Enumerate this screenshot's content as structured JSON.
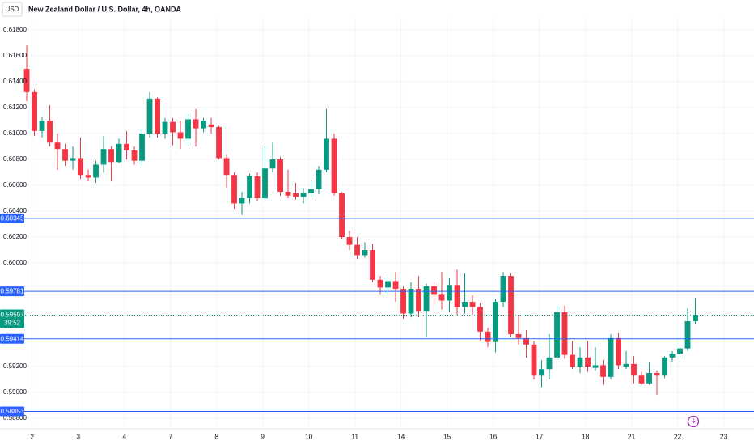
{
  "chart_data": {
    "type": "candlestick",
    "title": "New Zealand Dollar / U.S. Dollar, 4h, OANDA",
    "currency": "USD",
    "up_color": "#089981",
    "down_color": "#f23645",
    "line_color": "#2962ff",
    "grid": true,
    "xlim": [
      -0.53,
      94.63
    ],
    "ylim": [
      0.58719,
      0.61894
    ],
    "xticks": [
      {
        "value": 0.7,
        "label": "2"
      },
      {
        "value": 6.7,
        "label": "3"
      },
      {
        "value": 12.7,
        "label": "4"
      },
      {
        "value": 18.7,
        "label": "7"
      },
      {
        "value": 24.7,
        "label": "8"
      },
      {
        "value": 30.7,
        "label": "9"
      },
      {
        "value": 36.7,
        "label": "10"
      },
      {
        "value": 42.7,
        "label": "11"
      },
      {
        "value": 48.7,
        "label": "14"
      },
      {
        "value": 54.7,
        "label": "15"
      },
      {
        "value": 60.7,
        "label": "16"
      },
      {
        "value": 66.7,
        "label": "17"
      },
      {
        "value": 72.7,
        "label": "18"
      },
      {
        "value": 78.7,
        "label": "21"
      },
      {
        "value": 84.7,
        "label": "22"
      },
      {
        "value": 90.7,
        "label": "23"
      }
    ],
    "yticks": [
      {
        "value": 0.618,
        "label": "0.61800"
      },
      {
        "value": 0.616,
        "label": "0.61600"
      },
      {
        "value": 0.614,
        "label": "0.61400"
      },
      {
        "value": 0.612,
        "label": "0.61200"
      },
      {
        "value": 0.61,
        "label": "0.61000"
      },
      {
        "value": 0.608,
        "label": "0.60800"
      },
      {
        "value": 0.606,
        "label": "0.60600"
      },
      {
        "value": 0.604,
        "label": "0.60400"
      },
      {
        "value": 0.602,
        "label": "0.60200"
      },
      {
        "value": 0.6,
        "label": "0.60000"
      },
      {
        "value": 0.592,
        "label": "0.59200"
      },
      {
        "value": 0.59,
        "label": "0.59000"
      },
      {
        "value": 0.588,
        "label": "0.58800"
      }
    ],
    "price_lines": [
      {
        "value": 0.60345,
        "label": "0.60345"
      },
      {
        "value": 0.59781,
        "label": "0.59781"
      },
      {
        "value": 0.59414,
        "label": "0.59414"
      },
      {
        "value": 0.58853,
        "label": "0.58853"
      }
    ],
    "last_price": {
      "value": 0.59597,
      "label": "0.59597",
      "countdown": "39:52"
    },
    "open": [
      0.615,
      0.6132,
      0.6102,
      0.611,
      0.6093,
      0.6088,
      0.6079,
      0.6081,
      0.6068,
      0.6066,
      0.6076,
      0.6088,
      0.6078,
      0.6092,
      0.6087,
      0.6079,
      0.61,
      0.6127,
      0.61,
      0.6109,
      0.6101,
      0.6096,
      0.6111,
      0.6104,
      0.6107,
      0.6105,
      0.6081,
      0.6068,
      0.6046,
      0.605,
      0.6067,
      0.605,
      0.6073,
      0.608,
      0.6055,
      0.6054,
      0.6051,
      0.6054,
      0.6057,
      0.6072,
      0.6096,
      0.6054,
      0.602,
      0.6014,
      0.6006,
      0.601,
      0.5987,
      0.5981,
      0.5986,
      0.598,
      0.5961,
      0.598,
      0.5963,
      0.5982,
      0.5976,
      0.5971,
      0.5983,
      0.5966,
      0.597,
      0.5966,
      0.5947,
      0.5939,
      0.597,
      0.599,
      0.5945,
      0.5942,
      0.5937,
      0.5913,
      0.5918,
      0.5927,
      0.5962,
      0.5929,
      0.592,
      0.5927,
      0.5919,
      0.5921,
      0.5912,
      0.5942,
      0.592,
      0.5922,
      0.5913,
      0.5907,
      0.5915,
      0.5913,
      0.5927,
      0.593,
      0.5934,
      0.5955
    ],
    "high": [
      0.6168,
      0.6134,
      0.6113,
      0.6122,
      0.61,
      0.6092,
      0.609,
      0.6097,
      0.6072,
      0.6079,
      0.6098,
      0.609,
      0.6096,
      0.6102,
      0.609,
      0.6103,
      0.6132,
      0.6128,
      0.6112,
      0.6112,
      0.611,
      0.6115,
      0.6119,
      0.6112,
      0.6112,
      0.6106,
      0.6084,
      0.607,
      0.6055,
      0.6069,
      0.607,
      0.609,
      0.6093,
      0.6082,
      0.6072,
      0.6062,
      0.6058,
      0.6064,
      0.6075,
      0.6119,
      0.61,
      0.6055,
      0.6025,
      0.602,
      0.6016,
      0.6015,
      0.599,
      0.5989,
      0.5993,
      0.5982,
      0.5985,
      0.599,
      0.5984,
      0.5985,
      0.5993,
      0.5988,
      0.5995,
      0.5992,
      0.5975,
      0.5969,
      0.595,
      0.5972,
      0.5993,
      0.5992,
      0.596,
      0.5948,
      0.594,
      0.5925,
      0.5945,
      0.5967,
      0.5967,
      0.594,
      0.5935,
      0.594,
      0.5935,
      0.5925,
      0.5945,
      0.5946,
      0.5932,
      0.5928,
      0.5916,
      0.5923,
      0.5917,
      0.5928,
      0.5932,
      0.5935,
      0.5965,
      0.5973
    ],
    "low": [
      0.6125,
      0.6098,
      0.6097,
      0.609,
      0.6072,
      0.6075,
      0.6072,
      0.6065,
      0.6063,
      0.6062,
      0.607,
      0.6063,
      0.6077,
      0.608,
      0.6076,
      0.6075,
      0.6097,
      0.6097,
      0.6096,
      0.6091,
      0.6088,
      0.609,
      0.609,
      0.6101,
      0.61,
      0.608,
      0.6058,
      0.6042,
      0.6037,
      0.6046,
      0.6048,
      0.6048,
      0.607,
      0.6052,
      0.605,
      0.6049,
      0.6046,
      0.6051,
      0.6053,
      0.607,
      0.6052,
      0.6018,
      0.601,
      0.6003,
      0.6004,
      0.5985,
      0.5976,
      0.5975,
      0.597,
      0.5957,
      0.5958,
      0.5958,
      0.5943,
      0.5968,
      0.5964,
      0.5962,
      0.596,
      0.5961,
      0.596,
      0.594,
      0.5935,
      0.5931,
      0.5966,
      0.5943,
      0.5937,
      0.5927,
      0.591,
      0.5904,
      0.591,
      0.5925,
      0.5926,
      0.5918,
      0.5915,
      0.5916,
      0.5917,
      0.5906,
      0.591,
      0.5918,
      0.5918,
      0.5907,
      0.5906,
      0.5906,
      0.5898,
      0.5911,
      0.5924,
      0.5927,
      0.5932,
      0.5953
    ],
    "close": [
      0.6132,
      0.6102,
      0.611,
      0.6093,
      0.6088,
      0.6079,
      0.6081,
      0.6068,
      0.6066,
      0.6076,
      0.6088,
      0.6078,
      0.6092,
      0.6087,
      0.6079,
      0.61,
      0.6127,
      0.61,
      0.6109,
      0.6101,
      0.6096,
      0.6111,
      0.6104,
      0.611,
      0.6105,
      0.6081,
      0.6068,
      0.6046,
      0.605,
      0.6067,
      0.605,
      0.6073,
      0.608,
      0.6055,
      0.6052,
      0.6051,
      0.6054,
      0.6057,
      0.6072,
      0.6096,
      0.6054,
      0.602,
      0.6014,
      0.6006,
      0.601,
      0.5987,
      0.5981,
      0.5986,
      0.598,
      0.5961,
      0.598,
      0.5963,
      0.5982,
      0.5976,
      0.5971,
      0.5983,
      0.5966,
      0.597,
      0.5966,
      0.5947,
      0.5939,
      0.597,
      0.599,
      0.5945,
      0.5942,
      0.5937,
      0.5913,
      0.5918,
      0.5927,
      0.5962,
      0.5929,
      0.592,
      0.5927,
      0.592,
      0.5921,
      0.5912,
      0.5942,
      0.5921,
      0.5922,
      0.5913,
      0.5907,
      0.5915,
      0.5913,
      0.5927,
      0.593,
      0.5934,
      0.5955,
      0.596
    ]
  }
}
